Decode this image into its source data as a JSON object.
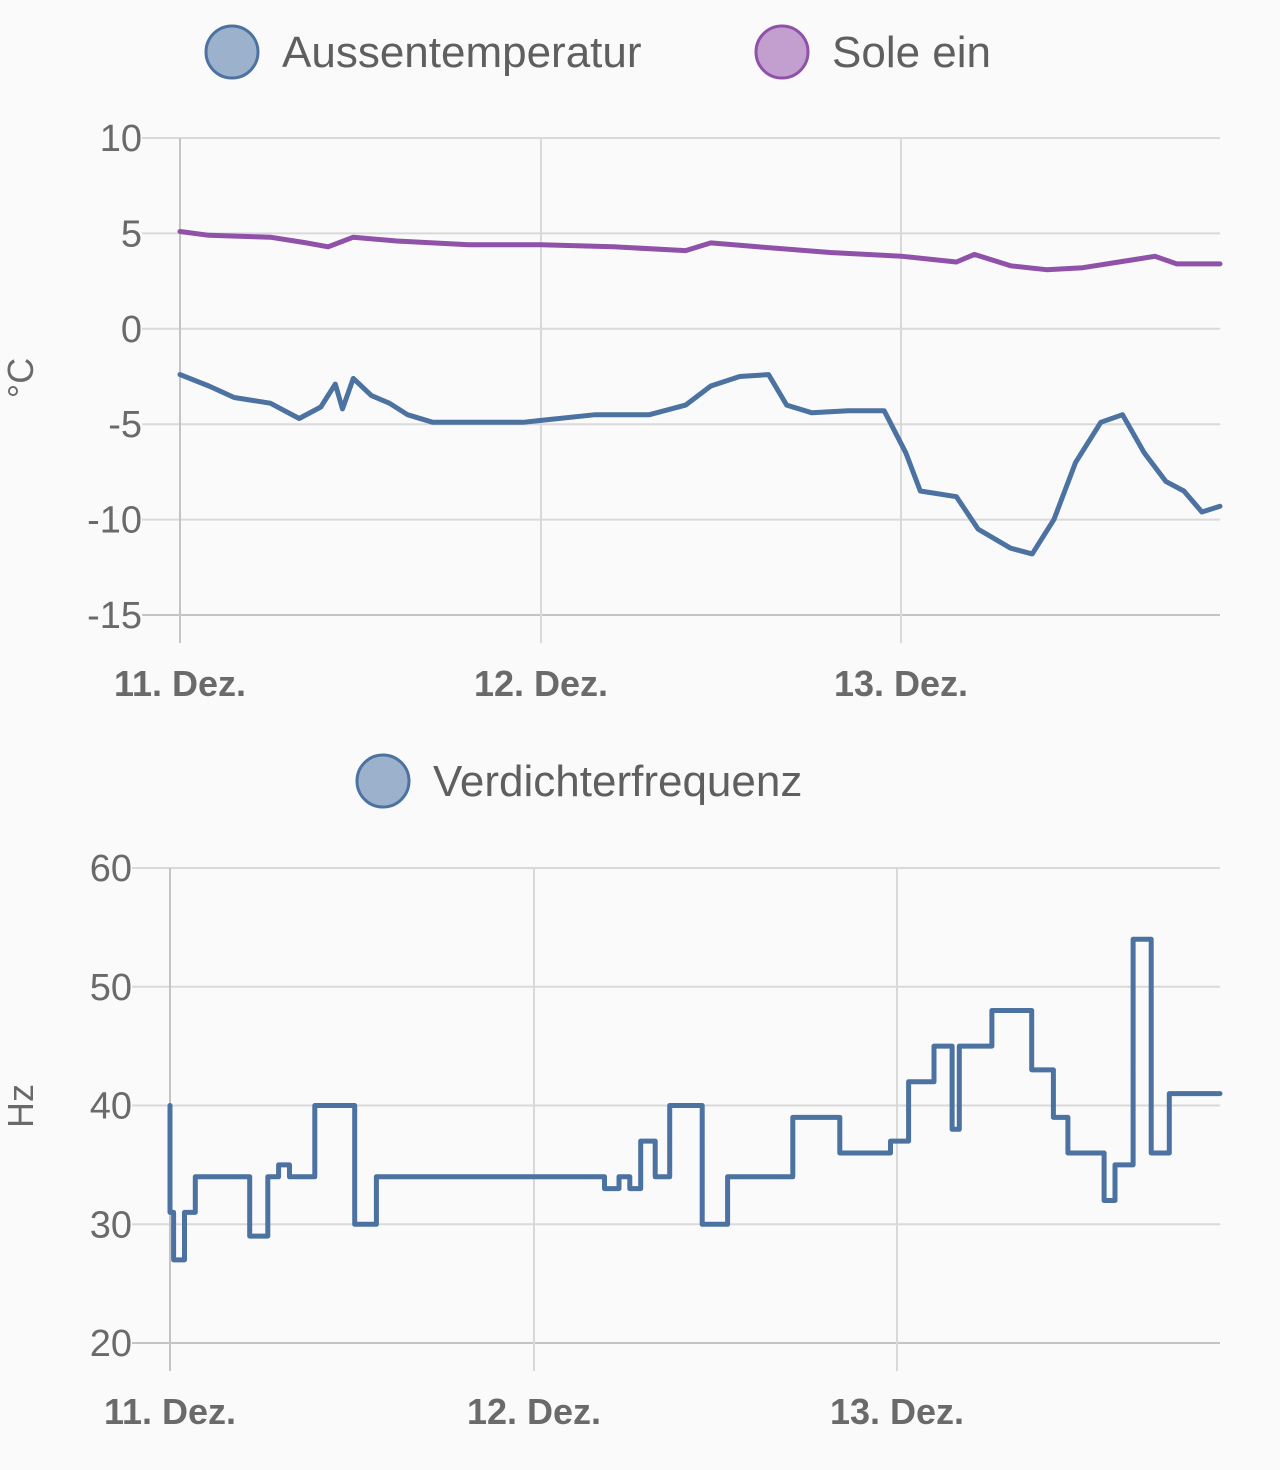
{
  "chart_data": [
    {
      "type": "line",
      "ylabel": "°C",
      "ylim": [
        -15,
        10
      ],
      "yticks": [
        "10",
        "5",
        "0",
        "-5",
        "-10",
        "-15"
      ],
      "x_tick_labels": [
        "11. Dez.",
        "12. Dez.",
        "13. Dez."
      ],
      "xlim_days": [
        0,
        2.88
      ],
      "grid": true,
      "legend_position": "top",
      "series": [
        {
          "name": "Aussentemperatur",
          "color": "#4b72a0",
          "points": [
            [
              0,
              -2.4
            ],
            [
              0.08,
              -3.0
            ],
            [
              0.15,
              -3.6
            ],
            [
              0.25,
              -3.9
            ],
            [
              0.33,
              -4.7
            ],
            [
              0.39,
              -4.1
            ],
            [
              0.43,
              -2.9
            ],
            [
              0.45,
              -4.2
            ],
            [
              0.48,
              -2.6
            ],
            [
              0.53,
              -3.5
            ],
            [
              0.58,
              -3.9
            ],
            [
              0.63,
              -4.5
            ],
            [
              0.7,
              -4.9
            ],
            [
              0.8,
              -4.9
            ],
            [
              0.95,
              -4.9
            ],
            [
              1.0,
              -4.8
            ],
            [
              1.15,
              -4.5
            ],
            [
              1.3,
              -4.5
            ],
            [
              1.4,
              -4.0
            ],
            [
              1.47,
              -3.0
            ],
            [
              1.55,
              -2.5
            ],
            [
              1.63,
              -2.4
            ],
            [
              1.68,
              -4.0
            ],
            [
              1.75,
              -4.4
            ],
            [
              1.85,
              -4.3
            ],
            [
              1.95,
              -4.3
            ],
            [
              2.01,
              -6.5
            ],
            [
              2.05,
              -8.5
            ],
            [
              2.15,
              -8.8
            ],
            [
              2.21,
              -10.5
            ],
            [
              2.3,
              -11.5
            ],
            [
              2.36,
              -11.8
            ],
            [
              2.42,
              -10.0
            ],
            [
              2.48,
              -7.0
            ],
            [
              2.55,
              -4.9
            ],
            [
              2.61,
              -4.5
            ],
            [
              2.67,
              -6.5
            ],
            [
              2.73,
              -8.0
            ],
            [
              2.78,
              -8.5
            ],
            [
              2.83,
              -9.6
            ],
            [
              2.88,
              -9.3
            ]
          ]
        },
        {
          "name": "Sole ein",
          "color": "#9051a8",
          "points": [
            [
              0,
              5.1
            ],
            [
              0.08,
              4.9
            ],
            [
              0.25,
              4.8
            ],
            [
              0.35,
              4.5
            ],
            [
              0.41,
              4.3
            ],
            [
              0.48,
              4.8
            ],
            [
              0.6,
              4.6
            ],
            [
              0.8,
              4.4
            ],
            [
              1.0,
              4.4
            ],
            [
              1.2,
              4.3
            ],
            [
              1.4,
              4.1
            ],
            [
              1.47,
              4.5
            ],
            [
              1.6,
              4.3
            ],
            [
              1.8,
              4.0
            ],
            [
              2.0,
              3.8
            ],
            [
              2.15,
              3.5
            ],
            [
              2.2,
              3.9
            ],
            [
              2.3,
              3.3
            ],
            [
              2.4,
              3.1
            ],
            [
              2.5,
              3.2
            ],
            [
              2.6,
              3.5
            ],
            [
              2.7,
              3.8
            ],
            [
              2.76,
              3.4
            ],
            [
              2.88,
              3.4
            ]
          ]
        }
      ]
    },
    {
      "type": "line",
      "ylabel": "Hz",
      "ylim": [
        20,
        60
      ],
      "yticks": [
        "60",
        "50",
        "40",
        "30",
        "20"
      ],
      "x_tick_labels": [
        "11. Dez.",
        "12. Dez.",
        "13. Dez."
      ],
      "xlim_days": [
        0,
        2.9
      ],
      "grid": true,
      "legend_position": "top",
      "series": [
        {
          "name": "Verdichterfrequenz",
          "color": "#4b72a0",
          "points": [
            [
              0,
              40
            ],
            [
              0,
              31
            ],
            [
              0.01,
              31
            ],
            [
              0.01,
              27
            ],
            [
              0.04,
              27
            ],
            [
              0.04,
              31
            ],
            [
              0.07,
              31
            ],
            [
              0.07,
              34
            ],
            [
              0.22,
              34
            ],
            [
              0.22,
              29
            ],
            [
              0.27,
              29
            ],
            [
              0.27,
              34
            ],
            [
              0.3,
              34
            ],
            [
              0.3,
              35
            ],
            [
              0.33,
              35
            ],
            [
              0.33,
              34
            ],
            [
              0.4,
              34
            ],
            [
              0.4,
              40
            ],
            [
              0.51,
              40
            ],
            [
              0.51,
              30
            ],
            [
              0.57,
              30
            ],
            [
              0.57,
              34
            ],
            [
              1.2,
              34
            ],
            [
              1.2,
              33
            ],
            [
              1.24,
              33
            ],
            [
              1.24,
              34
            ],
            [
              1.27,
              34
            ],
            [
              1.27,
              33
            ],
            [
              1.3,
              33
            ],
            [
              1.3,
              37
            ],
            [
              1.34,
              37
            ],
            [
              1.34,
              34
            ],
            [
              1.38,
              34
            ],
            [
              1.38,
              40
            ],
            [
              1.47,
              40
            ],
            [
              1.47,
              30
            ],
            [
              1.54,
              30
            ],
            [
              1.54,
              34
            ],
            [
              1.72,
              34
            ],
            [
              1.72,
              39
            ],
            [
              1.85,
              39
            ],
            [
              1.85,
              36
            ],
            [
              1.99,
              36
            ],
            [
              1.99,
              37
            ],
            [
              2.04,
              37
            ],
            [
              2.04,
              42
            ],
            [
              2.11,
              42
            ],
            [
              2.11,
              45
            ],
            [
              2.16,
              45
            ],
            [
              2.16,
              38
            ],
            [
              2.18,
              38
            ],
            [
              2.18,
              45
            ],
            [
              2.27,
              45
            ],
            [
              2.27,
              48
            ],
            [
              2.38,
              48
            ],
            [
              2.38,
              43
            ],
            [
              2.44,
              43
            ],
            [
              2.44,
              39
            ],
            [
              2.48,
              39
            ],
            [
              2.48,
              36
            ],
            [
              2.58,
              36
            ],
            [
              2.58,
              32
            ],
            [
              2.61,
              32
            ],
            [
              2.61,
              35
            ],
            [
              2.66,
              35
            ],
            [
              2.66,
              54
            ],
            [
              2.71,
              54
            ],
            [
              2.71,
              36
            ],
            [
              2.76,
              36
            ],
            [
              2.76,
              41
            ],
            [
              2.9,
              41
            ]
          ]
        }
      ]
    }
  ]
}
